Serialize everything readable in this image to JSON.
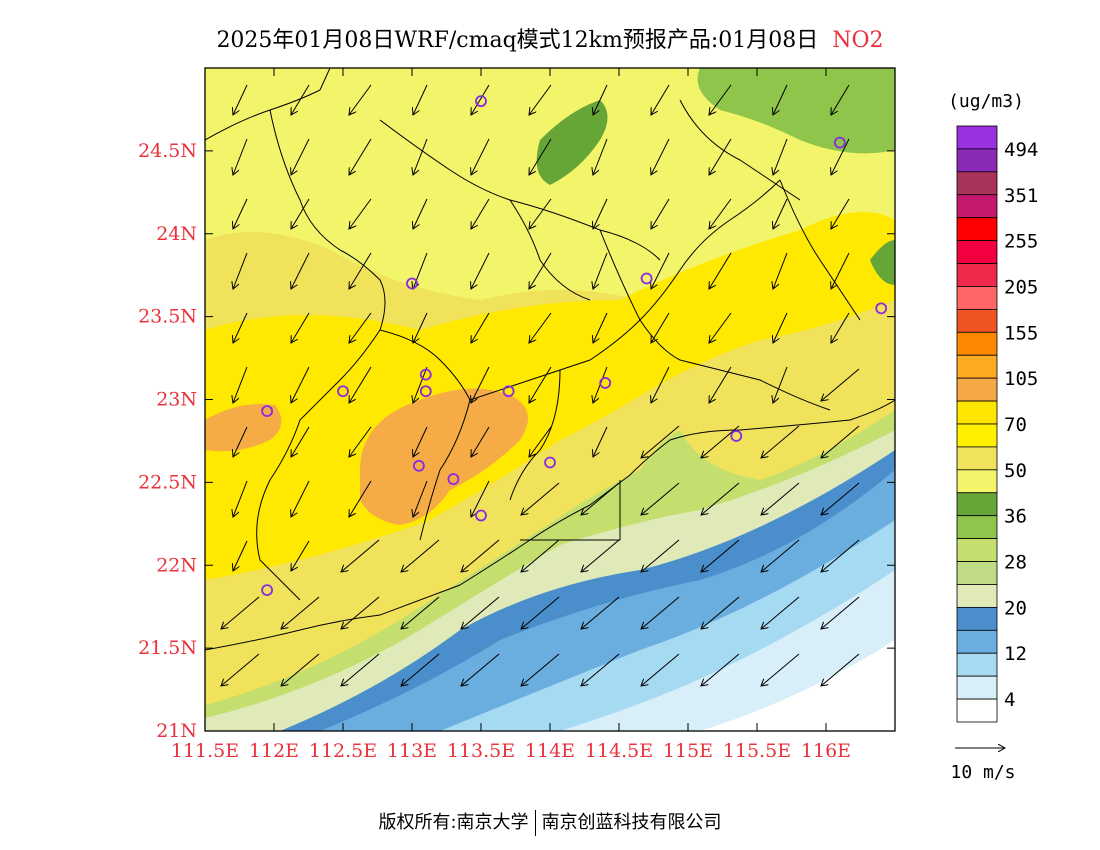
{
  "title": {
    "main": "2025年01月08日WRF/cmaq模式12km预报产品:01月08日",
    "pollutant": "NO2"
  },
  "colors": {
    "axis_label": "#e8323c",
    "contour_levels": [
      {
        "min": 0,
        "color": "#ffffff"
      },
      {
        "min": 4,
        "color": "#d8eef9"
      },
      {
        "min": 8,
        "color": "#a6daf3"
      },
      {
        "min": 12,
        "color": "#7dbde6"
      },
      {
        "min": 16,
        "color": "#4a8fcb"
      },
      {
        "min": 20,
        "color": "#dfeab8"
      },
      {
        "min": 24,
        "color": "#bfdc84"
      },
      {
        "min": 28,
        "color": "#c4df6e"
      },
      {
        "min": 32,
        "color": "#8fc54b"
      },
      {
        "min": 36,
        "color": "#65a637"
      },
      {
        "min": 40,
        "color": "#f2f46a"
      },
      {
        "min": 50,
        "color": "#f1e25c"
      },
      {
        "min": 60,
        "color": "#ffee00"
      },
      {
        "min": 70,
        "color": "#ffe900"
      },
      {
        "min": 85,
        "color": "#f5ac47"
      },
      {
        "min": 105,
        "color": "#fdb32d"
      }
    ]
  },
  "axes": {
    "y_ticks": [
      "24.5N",
      "24N",
      "23.5N",
      "23N",
      "22.5N",
      "22N",
      "21.5N",
      "21N"
    ],
    "x_ticks": [
      "111.5E",
      "112E",
      "112.5E",
      "113E",
      "113.5E",
      "114E",
      "114.5E",
      "115E",
      "115.5E",
      "116E"
    ]
  },
  "colorbar": {
    "unit": "(ug/m3)",
    "labels": [
      "494",
      "351",
      "255",
      "205",
      "155",
      "105",
      "70",
      "50",
      "36",
      "28",
      "20",
      "12",
      "4"
    ],
    "colors": [
      "#9b30e0",
      "#8c2ab8",
      "#a83258",
      "#c41a6e",
      "#ff0000",
      "#f20040",
      "#ee2a4c",
      "#ff6666",
      "#ee5522",
      "#ff8800",
      "#ffaa22",
      "#f5a845",
      "#ffe600",
      "#fff000",
      "#f1e25c",
      "#f2f46a",
      "#65a637",
      "#8fc54b",
      "#c4df6e",
      "#bfdc84",
      "#dfeab8",
      "#4a8fcb",
      "#6aaedf",
      "#a6daf3",
      "#d8eef9",
      "#ffffff"
    ]
  },
  "wind_reference": {
    "label": "10 m/s"
  },
  "cities": [
    {
      "name": "city",
      "lon": 113.5,
      "lat": 24.8
    },
    {
      "name": "city",
      "lon": 116.1,
      "lat": 24.55
    },
    {
      "name": "city",
      "lon": 113.0,
      "lat": 23.7
    },
    {
      "name": "city",
      "lon": 114.7,
      "lat": 23.73
    },
    {
      "name": "city",
      "lon": 116.4,
      "lat": 23.55
    },
    {
      "name": "city",
      "lon": 112.5,
      "lat": 23.05
    },
    {
      "name": "city",
      "lon": 113.1,
      "lat": 23.15
    },
    {
      "name": "city",
      "lon": 113.1,
      "lat": 23.05
    },
    {
      "name": "city",
      "lon": 113.7,
      "lat": 23.05
    },
    {
      "name": "city",
      "lon": 114.4,
      "lat": 23.1
    },
    {
      "name": "city",
      "lon": 111.95,
      "lat": 22.93
    },
    {
      "name": "city",
      "lon": 115.35,
      "lat": 22.78
    },
    {
      "name": "city",
      "lon": 113.05,
      "lat": 22.6
    },
    {
      "name": "city",
      "lon": 113.3,
      "lat": 22.52
    },
    {
      "name": "city",
      "lon": 114.0,
      "lat": 22.62
    },
    {
      "name": "city",
      "lon": 113.5,
      "lat": 22.3
    },
    {
      "name": "city",
      "lon": 111.95,
      "lat": 21.85
    }
  ],
  "footer": {
    "left": "版权所有:南京大学",
    "right": "南京创蓝科技有限公司"
  }
}
